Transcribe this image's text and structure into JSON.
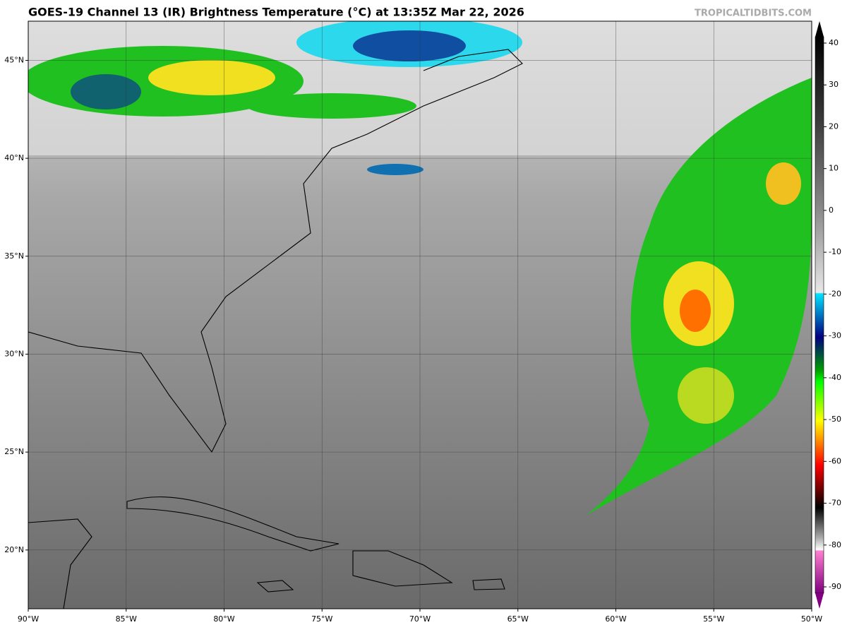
{
  "header": {
    "title": "GOES-19 Channel 13 (IR) Brightness Temperature (°C) at 13:35Z Mar 22, 2026",
    "watermark": "TROPICALTIDBITS.COM"
  },
  "map": {
    "lonlim": [
      -90,
      -50
    ],
    "latlim": [
      17,
      47
    ],
    "lat_ticks": [
      {
        "value": 20,
        "label": "20°N"
      },
      {
        "value": 25,
        "label": "25°N"
      },
      {
        "value": 30,
        "label": "30°N"
      },
      {
        "value": 35,
        "label": "35°N"
      },
      {
        "value": 40,
        "label": "40°N"
      },
      {
        "value": 45,
        "label": "45°N"
      }
    ],
    "lon_ticks": [
      {
        "value": -90,
        "label": "90°W"
      },
      {
        "value": -85,
        "label": "85°W"
      },
      {
        "value": -80,
        "label": "80°W"
      },
      {
        "value": -75,
        "label": "75°W"
      },
      {
        "value": -70,
        "label": "70°W"
      },
      {
        "value": -65,
        "label": "65°W"
      },
      {
        "value": -60,
        "label": "60°W"
      },
      {
        "value": -55,
        "label": "55°W"
      },
      {
        "value": -50,
        "label": "50°W"
      }
    ]
  },
  "colorbar": {
    "lim": [
      -90,
      40
    ],
    "ticks": [
      40,
      30,
      20,
      10,
      0,
      -10,
      -20,
      -30,
      -40,
      -50,
      -60,
      -70,
      -80,
      -90
    ]
  }
}
